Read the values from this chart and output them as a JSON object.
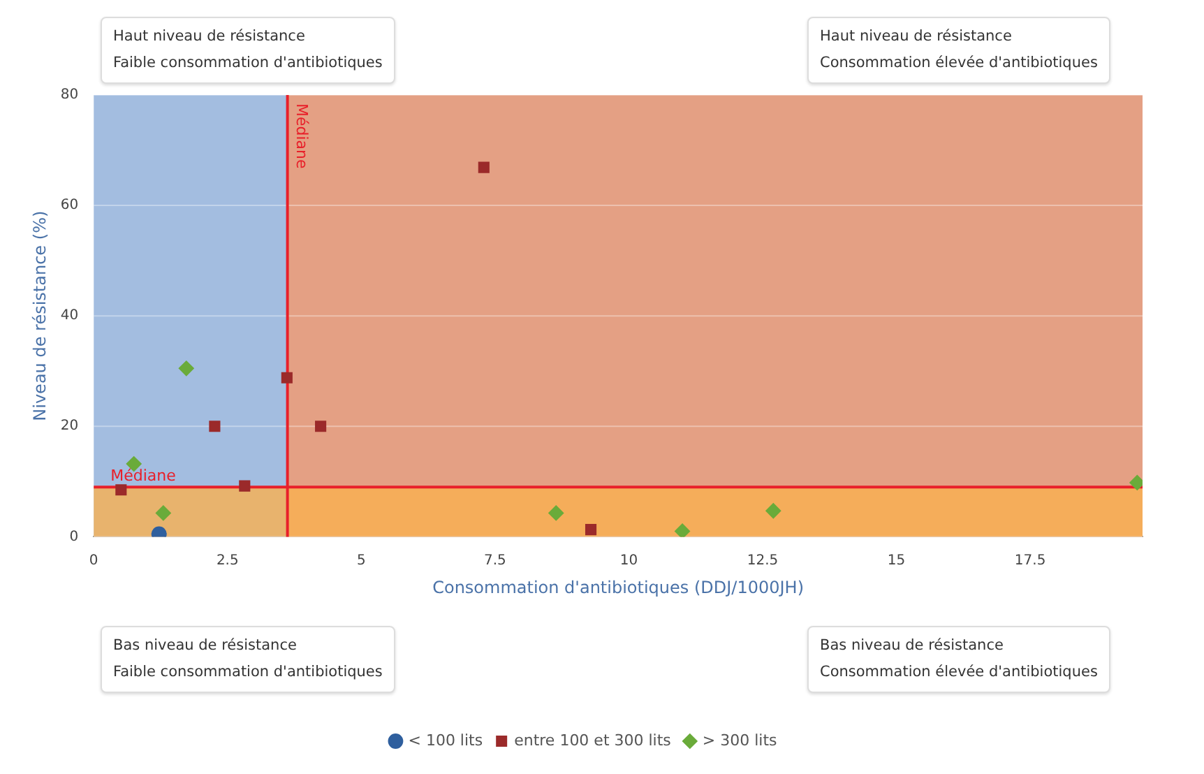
{
  "chart_data": {
    "type": "scatter",
    "xlabel": "Consommation d'antibiotiques (DDJ/1000JH)",
    "ylabel": "Niveau de résistance (%)",
    "xlim": [
      0,
      19.6
    ],
    "xticks": [
      0,
      2.5,
      5,
      7.5,
      10,
      12.5,
      15,
      17.5
    ],
    "ylim": [
      0,
      80
    ],
    "yticks": [
      0,
      20,
      40,
      60,
      80
    ],
    "grid": "y",
    "legend": "bottom",
    "series": [
      {
        "name": "< 100 lits",
        "color": "#2f5f9e",
        "marker": "circle",
        "x": [
          1.22
        ],
        "values": [
          0.5
        ]
      },
      {
        "name": "entre 100 et 300 lits",
        "color": "#9b2a2a",
        "marker": "square",
        "x": [
          0.51,
          2.26,
          2.82,
          3.61,
          4.24,
          7.29,
          9.29
        ],
        "values": [
          8.5,
          20,
          9.2,
          28.8,
          20,
          66.9,
          1.3
        ]
      },
      {
        "name": "> 300 lits",
        "color": "#6aab3a",
        "marker": "diamond",
        "x": [
          0.75,
          1.3,
          1.73,
          8.64,
          11.0,
          12.7,
          19.5
        ],
        "values": [
          13.2,
          4.3,
          30.5,
          4.3,
          1.0,
          4.7,
          9.8
        ]
      }
    ],
    "ref_lines": [
      {
        "axis": "x",
        "value": 3.62,
        "label": "Médiane",
        "color": "#e8202a"
      },
      {
        "axis": "y",
        "value": 9,
        "label": "Médiane",
        "color": "#e8202a"
      }
    ],
    "bands": [
      {
        "axis": "x",
        "from": 0,
        "to": 3.62,
        "color": "#a3bde0"
      },
      {
        "axis": "x",
        "from": 3.62,
        "to": 19.6,
        "color": "#e4a084"
      },
      {
        "axis": "y",
        "from": 0,
        "to": 9,
        "color": "#f9b050"
      }
    ],
    "annotations": [
      "Haut niveau de résistance\nFaible consommation d'antibiotiques",
      "Haut niveau de résistance\nConsommation élevée d'antibiotiques",
      "Bas niveau de résistance\nFaible consommation d'antibiotiques",
      "Bas niveau de résistance\nConsommation élevée d'antibiotiques"
    ]
  }
}
